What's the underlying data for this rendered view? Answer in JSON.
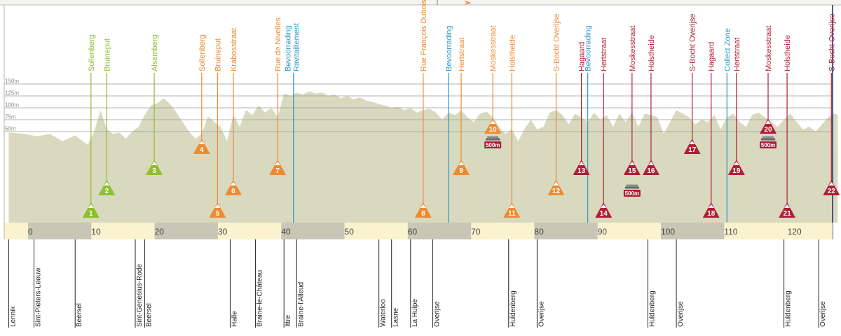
{
  "chart_data": {
    "type": "area",
    "title": "",
    "xlabel": "",
    "ylabel": "",
    "xlim": [
      -3.5,
      127.5
    ],
    "ylim": [
      -135,
      180
    ],
    "x_ticks": [
      0,
      10,
      20,
      30,
      40,
      50,
      60,
      70,
      80,
      90,
      100,
      110,
      120
    ],
    "y_ticks": [
      {
        "value": 50,
        "label": "50m"
      },
      {
        "value": 75,
        "label": "75m"
      },
      {
        "value": 100,
        "label": "100m"
      },
      {
        "value": 125,
        "label": "125m"
      },
      {
        "value": 150,
        "label": "150m"
      }
    ],
    "grid": true,
    "colors": {
      "profile": "#d8d9bf",
      "green": "#8dbf2f",
      "orange": "#ee8b32",
      "red": "#b01e35",
      "blue": "#2d97c6",
      "axis_band_light": "#fbf3d0",
      "axis_band_dark": "#c8c6b4",
      "grid": "#9a9a9a"
    },
    "elevation": [
      [
        -3.5,
        48
      ],
      [
        -1,
        45
      ],
      [
        1,
        40
      ],
      [
        3,
        45
      ],
      [
        5,
        30
      ],
      [
        7,
        42
      ],
      [
        9,
        22
      ],
      [
        10,
        50
      ],
      [
        11,
        95
      ],
      [
        12,
        55
      ],
      [
        13,
        45
      ],
      [
        14,
        48
      ],
      [
        15,
        35
      ],
      [
        16,
        50
      ],
      [
        17,
        60
      ],
      [
        18,
        85
      ],
      [
        19,
        105
      ],
      [
        20,
        110
      ],
      [
        21,
        120
      ],
      [
        22,
        108
      ],
      [
        23,
        90
      ],
      [
        24,
        70
      ],
      [
        25,
        50
      ],
      [
        26,
        35
      ],
      [
        27,
        45
      ],
      [
        28,
        82
      ],
      [
        29,
        70
      ],
      [
        30,
        60
      ],
      [
        31,
        30
      ],
      [
        32,
        85
      ],
      [
        33,
        60
      ],
      [
        34,
        95
      ],
      [
        35,
        85
      ],
      [
        36,
        105
      ],
      [
        37,
        90
      ],
      [
        38,
        100
      ],
      [
        39,
        80
      ],
      [
        40,
        130
      ],
      [
        41,
        125
      ],
      [
        42,
        132
      ],
      [
        43,
        128
      ],
      [
        44,
        135
      ],
      [
        45,
        130
      ],
      [
        46,
        132
      ],
      [
        47,
        125
      ],
      [
        48,
        128
      ],
      [
        49,
        120
      ],
      [
        50,
        125
      ],
      [
        51,
        118
      ],
      [
        52,
        122
      ],
      [
        53,
        115
      ],
      [
        54,
        112
      ],
      [
        55,
        108
      ],
      [
        56,
        105
      ],
      [
        57,
        100
      ],
      [
        58,
        102
      ],
      [
        59,
        95
      ],
      [
        60,
        100
      ],
      [
        61,
        90
      ],
      [
        62,
        95
      ],
      [
        63,
        98
      ],
      [
        64,
        90
      ],
      [
        65,
        75
      ],
      [
        66,
        90
      ],
      [
        67,
        85
      ],
      [
        68,
        95
      ],
      [
        69,
        80
      ],
      [
        70,
        70
      ],
      [
        71,
        88
      ],
      [
        72,
        92
      ],
      [
        73,
        80
      ],
      [
        74,
        60
      ],
      [
        75,
        45
      ],
      [
        76,
        55
      ],
      [
        77,
        30
      ],
      [
        78,
        55
      ],
      [
        79,
        75
      ],
      [
        80,
        55
      ],
      [
        81,
        60
      ],
      [
        82,
        90
      ],
      [
        83,
        95
      ],
      [
        84,
        85
      ],
      [
        85,
        65
      ],
      [
        86,
        88
      ],
      [
        87,
        80
      ],
      [
        88,
        70
      ],
      [
        89,
        90
      ],
      [
        90,
        75
      ],
      [
        91,
        85
      ],
      [
        92,
        60
      ],
      [
        93,
        88
      ],
      [
        94,
        70
      ],
      [
        95,
        90
      ],
      [
        96,
        60
      ],
      [
        97,
        88
      ],
      [
        98,
        85
      ],
      [
        99,
        80
      ],
      [
        100,
        45
      ],
      [
        101,
        70
      ],
      [
        102,
        95
      ],
      [
        103,
        88
      ],
      [
        104,
        80
      ],
      [
        105,
        65
      ],
      [
        106,
        75
      ],
      [
        107,
        70
      ],
      [
        108,
        85
      ],
      [
        109,
        55
      ],
      [
        110,
        80
      ],
      [
        111,
        88
      ],
      [
        112,
        70
      ],
      [
        113,
        60
      ],
      [
        114,
        85
      ],
      [
        115,
        90
      ],
      [
        116,
        80
      ],
      [
        117,
        70
      ],
      [
        118,
        60
      ],
      [
        119,
        75
      ],
      [
        120,
        88
      ],
      [
        121,
        70
      ],
      [
        122,
        55
      ],
      [
        123,
        60
      ],
      [
        124,
        50
      ],
      [
        125,
        65
      ],
      [
        126,
        80
      ],
      [
        127,
        88
      ],
      [
        127.5,
        85
      ]
    ],
    "climbs": [
      {
        "number": "1",
        "name": "Sollenberg",
        "km": 9.5,
        "color": "green"
      },
      {
        "number": "2",
        "name": "Bruineput",
        "km": 12,
        "color": "green"
      },
      {
        "number": "3",
        "name": "Alsemberg",
        "km": 19.5,
        "color": "green"
      },
      {
        "number": "4",
        "name": "Sollenberg",
        "km": 27,
        "color": "orange"
      },
      {
        "number": "5",
        "name": "Bruineput",
        "km": 29.5,
        "color": "orange"
      },
      {
        "number": "6",
        "name": "Krabosstraat",
        "km": 32,
        "color": "orange"
      },
      {
        "number": "7",
        "name": "Rue de Nivelles",
        "km": 39,
        "color": "orange"
      },
      {
        "number": "8",
        "name": "Rue François Dubois",
        "km": 62,
        "color": "orange"
      },
      {
        "number": "9",
        "name": "Hertstraat",
        "km": 68,
        "color": "orange"
      },
      {
        "number": "10",
        "name": "Moskesstraat",
        "km": 73,
        "color": "orange"
      },
      {
        "number": "11",
        "name": "Holstheide",
        "km": 76,
        "color": "orange"
      },
      {
        "number": "12",
        "name": "S-Bocht Overijse",
        "km": 83,
        "color": "orange"
      },
      {
        "number": "13",
        "name": "Hagaard",
        "km": 87,
        "color": "red"
      },
      {
        "number": "14",
        "name": "Hertstraat",
        "km": 90.5,
        "color": "red"
      },
      {
        "number": "15",
        "name": "Moskesstraat",
        "km": 95,
        "color": "red"
      },
      {
        "number": "16",
        "name": "Holstheide",
        "km": 98,
        "color": "red"
      },
      {
        "number": "17",
        "name": "S-Bocht Overijse",
        "km": 104.5,
        "color": "red"
      },
      {
        "number": "18",
        "name": "Hagaard",
        "km": 107.5,
        "color": "red"
      },
      {
        "number": "19",
        "name": "Hertstraat",
        "km": 111.5,
        "color": "red"
      },
      {
        "number": "20",
        "name": "Moskesstraat",
        "km": 116.5,
        "color": "red"
      },
      {
        "number": "21",
        "name": "Holstheide",
        "km": 119.5,
        "color": "red"
      },
      {
        "number": "22",
        "name": "S-Bocht Overijse",
        "km": 126.5,
        "color": "red"
      }
    ],
    "cobbles": [
      {
        "label": "500m",
        "km": 73
      },
      {
        "label": "500m",
        "km": 95
      },
      {
        "label": "500m",
        "km": 116.5
      }
    ],
    "service_points": [
      {
        "name": "Bevoorrading",
        "name2": "Ravitaillement",
        "km": 41.5,
        "color": "blue"
      },
      {
        "name": "Bevoorrading",
        "name2": "",
        "km": 66,
        "color": "blue"
      },
      {
        "name": "Bevoorrading",
        "name2": "",
        "km": 88,
        "color": "blue"
      },
      {
        "name": "Collect Zone",
        "name2": "",
        "km": 110,
        "color": "blue"
      }
    ],
    "towns": [
      {
        "name": "Lennik",
        "km": -3.5
      },
      {
        "name": "Sint-Pieters-Leeuw",
        "km": 0.5
      },
      {
        "name": "Beersel",
        "km": 7
      },
      {
        "name": "Sint-Genesius-Rode",
        "km": 16.5
      },
      {
        "name": "Beersel",
        "km": 18
      },
      {
        "name": "Halle",
        "km": 31.5
      },
      {
        "name": "Braine-le-Château",
        "km": 35.5
      },
      {
        "name": "Ittre",
        "km": 40
      },
      {
        "name": "Braine-l'Alleud",
        "km": 42
      },
      {
        "name": "Waterloo",
        "km": 55
      },
      {
        "name": "Lasne",
        "km": 57
      },
      {
        "name": "La Hulpe",
        "km": 60
      },
      {
        "name": "Overijse",
        "km": 63.5
      },
      {
        "name": "Huldenberg",
        "km": 75.5
      },
      {
        "name": "Overijse",
        "km": 80
      },
      {
        "name": "Huldenberg",
        "km": 97.5
      },
      {
        "name": "Overijse",
        "km": 102
      },
      {
        "name": "Huldenberg",
        "km": 119
      },
      {
        "name": "Overijse",
        "km": 124.5
      }
    ]
  }
}
